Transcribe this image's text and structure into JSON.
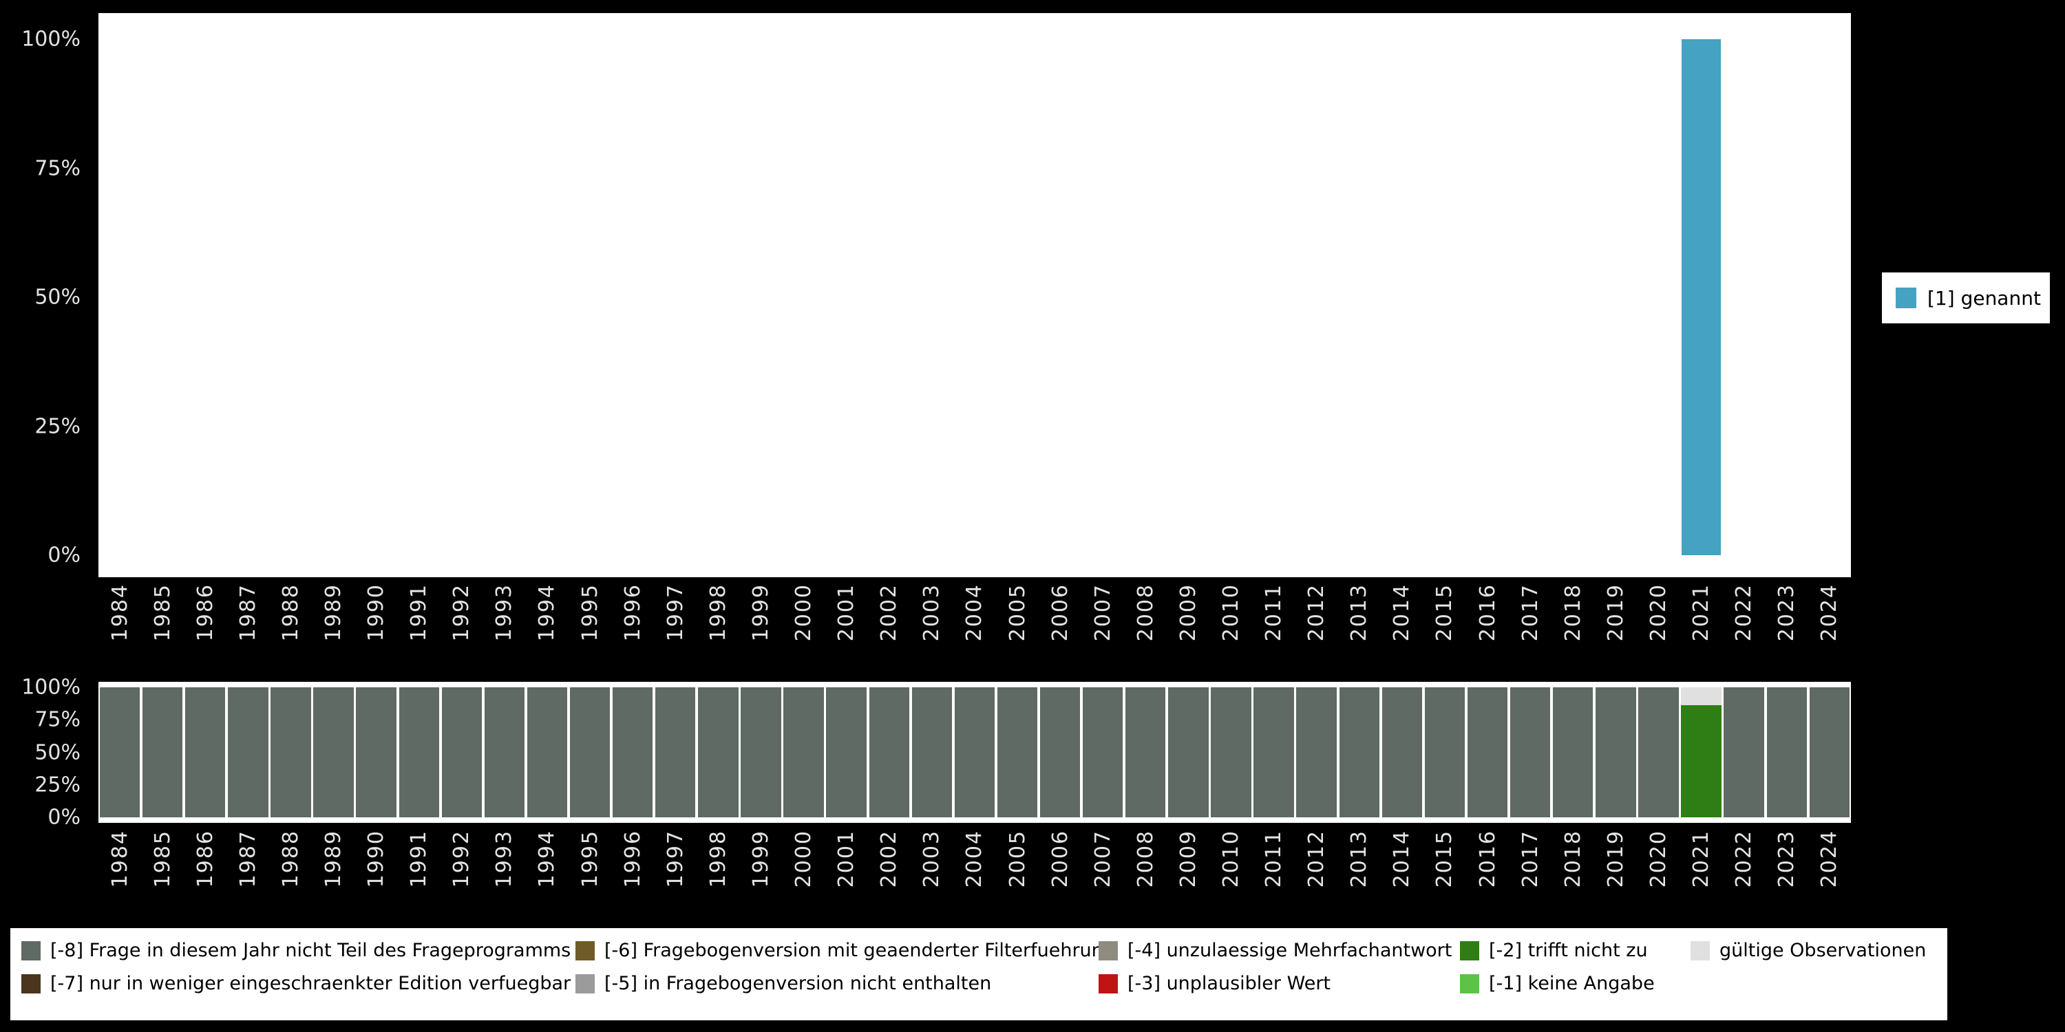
{
  "chart_data": [
    {
      "type": "bar",
      "title": "",
      "xlabel": "",
      "ylabel": "",
      "ylim": [
        0,
        100
      ],
      "grid": false,
      "legend_position": "right",
      "ytick_labels": [
        "100%",
        "75%",
        "50%",
        "25%",
        "0%"
      ],
      "x": [
        "1984",
        "1985",
        "1986",
        "1987",
        "1988",
        "1989",
        "1990",
        "1991",
        "1992",
        "1993",
        "1994",
        "1995",
        "1996",
        "1997",
        "1998",
        "1999",
        "2000",
        "2001",
        "2002",
        "2003",
        "2004",
        "2005",
        "2006",
        "2007",
        "2008",
        "2009",
        "2010",
        "2011",
        "2012",
        "2013",
        "2014",
        "2015",
        "2016",
        "2017",
        "2018",
        "2019",
        "2020",
        "2021",
        "2022",
        "2023",
        "2024"
      ],
      "series": [
        {
          "name": "[1] genannt",
          "color": "#46a2c2",
          "values": [
            null,
            null,
            null,
            null,
            null,
            null,
            null,
            null,
            null,
            null,
            null,
            null,
            null,
            null,
            null,
            null,
            null,
            null,
            null,
            null,
            null,
            null,
            null,
            null,
            null,
            null,
            null,
            null,
            null,
            null,
            null,
            null,
            null,
            null,
            null,
            null,
            null,
            100,
            null,
            null,
            null
          ]
        }
      ]
    },
    {
      "type": "stacked-bar",
      "title": "",
      "xlabel": "",
      "ylabel": "",
      "ylim": [
        0,
        100
      ],
      "grid": false,
      "legend_position": "bottom",
      "ytick_labels": [
        "100%",
        "75%",
        "50%",
        "25%",
        "0%"
      ],
      "x": [
        "1984",
        "1985",
        "1986",
        "1987",
        "1988",
        "1989",
        "1990",
        "1991",
        "1992",
        "1993",
        "1994",
        "1995",
        "1996",
        "1997",
        "1998",
        "1999",
        "2000",
        "2001",
        "2002",
        "2003",
        "2004",
        "2005",
        "2006",
        "2007",
        "2008",
        "2009",
        "2010",
        "2011",
        "2012",
        "2013",
        "2014",
        "2015",
        "2016",
        "2017",
        "2018",
        "2019",
        "2020",
        "2021",
        "2022",
        "2023",
        "2024"
      ],
      "series": [
        {
          "name": "[-8] Frage in diesem Jahr nicht Teil des Frageprogramms",
          "color": "#5e6a63",
          "values": [
            100,
            100,
            100,
            100,
            100,
            100,
            100,
            100,
            100,
            100,
            100,
            100,
            100,
            100,
            100,
            100,
            100,
            100,
            100,
            100,
            100,
            100,
            100,
            100,
            100,
            100,
            100,
            100,
            100,
            100,
            100,
            100,
            100,
            100,
            100,
            100,
            100,
            0,
            100,
            100,
            100
          ]
        },
        {
          "name": "[-2] trifft nicht zu",
          "color": "#2e7e15",
          "values": [
            0,
            0,
            0,
            0,
            0,
            0,
            0,
            0,
            0,
            0,
            0,
            0,
            0,
            0,
            0,
            0,
            0,
            0,
            0,
            0,
            0,
            0,
            0,
            0,
            0,
            0,
            0,
            0,
            0,
            0,
            0,
            0,
            0,
            0,
            0,
            0,
            0,
            86,
            0,
            0,
            0
          ]
        },
        {
          "name": "gültige Observationen",
          "color": "#e0e0e0",
          "values": [
            0,
            0,
            0,
            0,
            0,
            0,
            0,
            0,
            0,
            0,
            0,
            0,
            0,
            0,
            0,
            0,
            0,
            0,
            0,
            0,
            0,
            0,
            0,
            0,
            0,
            0,
            0,
            0,
            0,
            0,
            0,
            0,
            0,
            0,
            0,
            0,
            0,
            14,
            0,
            0,
            0
          ]
        }
      ]
    }
  ],
  "missings_legend": {
    "columns": [
      [
        {
          "label": "[-8] Frage in diesem Jahr nicht Teil des Frageprogramms",
          "color": "#5e6a63"
        },
        {
          "label": "[-7] nur in weniger eingeschraenkter Edition verfuegbar",
          "color": "#4b351d"
        }
      ],
      [
        {
          "label": "[-6] Fragebogenversion mit geaenderter Filterfuehrung",
          "color": "#6f5b28"
        },
        {
          "label": "[-5] in Fragebogenversion nicht enthalten",
          "color": "#9b9b9b"
        }
      ],
      [
        {
          "label": "[-4] unzulaessige Mehrfachantwort",
          "color": "#8f8c7f"
        },
        {
          "label": "[-3] unplausibler Wert",
          "color": "#c01414"
        }
      ],
      [
        {
          "label": "[-2] trifft nicht zu",
          "color": "#2e7e15"
        },
        {
          "label": "[-1] keine Angabe",
          "color": "#5dc348"
        }
      ],
      [
        {
          "label": "gültige Observationen",
          "color": "#e0e0e0"
        }
      ]
    ]
  },
  "colors": {
    "background": "#000000",
    "panel": "#ffffff",
    "axis_text": "#e3e3e3",
    "legend_text": "#000000"
  }
}
